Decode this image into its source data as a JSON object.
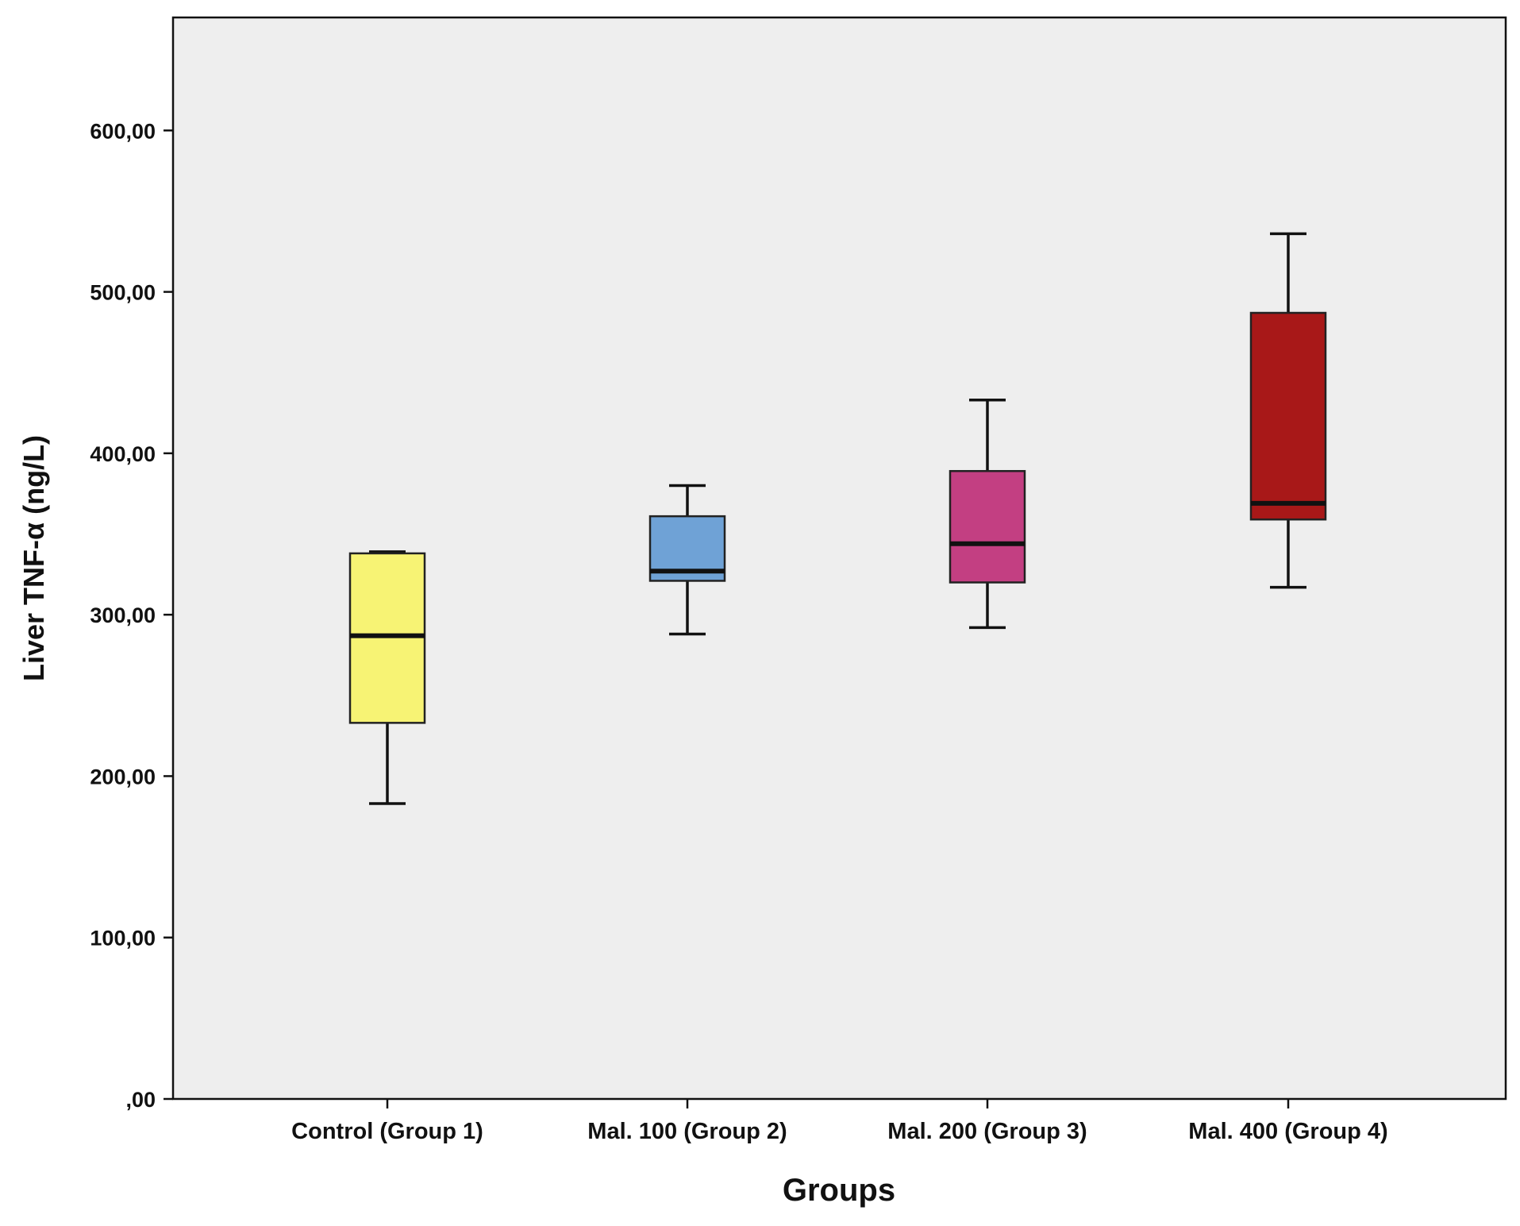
{
  "chart_data": {
    "type": "boxplot",
    "title": "",
    "xlabel": "Groups",
    "ylabel": "Liver TNF-α  (ng/L)",
    "ylim": [
      0,
      670
    ],
    "yticks": [
      0,
      100,
      200,
      300,
      400,
      500,
      600
    ],
    "ytick_labels": [
      ",00",
      "100,00",
      "200,00",
      "300,00",
      "400,00",
      "500,00",
      "600,00"
    ],
    "grid": false,
    "plot_background": "#eeeeee",
    "categories": [
      "Control (Group 1)",
      "Mal. 100 (Group 2)",
      "Mal. 200 (Group 3)",
      "Mal. 400 (Group 4)"
    ],
    "boxes": [
      {
        "name": "Control (Group 1)",
        "whisker_low": 183,
        "q1": 233,
        "median": 287,
        "q3": 338,
        "whisker_high": 339,
        "color": "#f7f374"
      },
      {
        "name": "Mal. 100 (Group 2)",
        "whisker_low": 288,
        "q1": 321,
        "median": 327,
        "q3": 361,
        "whisker_high": 380,
        "color": "#6fa2d6"
      },
      {
        "name": "Mal. 200 (Group 3)",
        "whisker_low": 292,
        "q1": 320,
        "median": 344,
        "q3": 389,
        "whisker_high": 433,
        "color": "#c33f82"
      },
      {
        "name": "Mal. 400 (Group 4)",
        "whisker_low": 317,
        "q1": 359,
        "median": 369,
        "q3": 487,
        "whisker_high": 536,
        "color": "#a81818"
      }
    ]
  }
}
